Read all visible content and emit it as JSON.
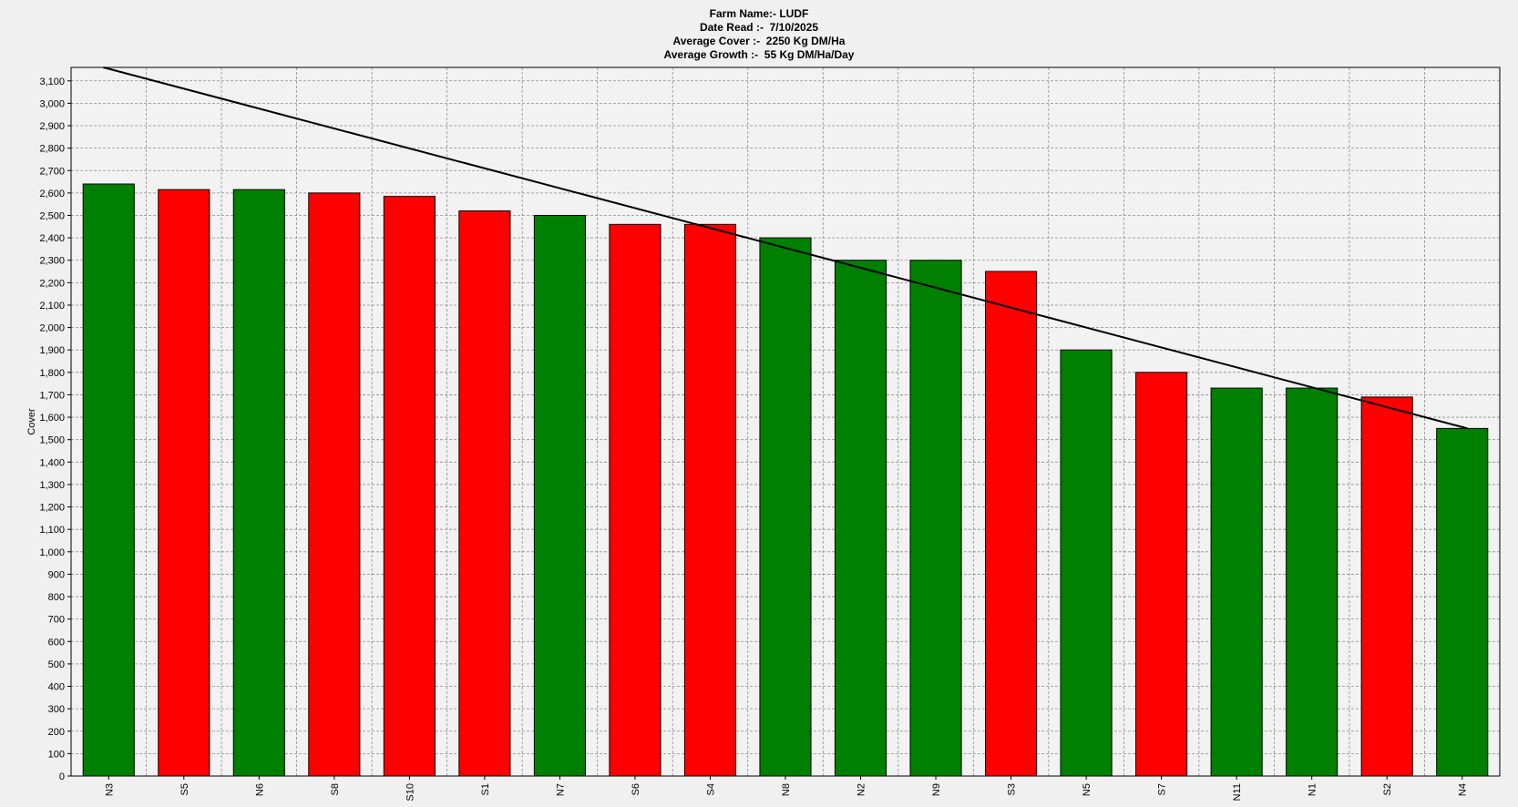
{
  "header": {
    "farm": "Farm Name:- LUDF",
    "date": "Date Read :-  7/10/2025",
    "avg_cover": "Average Cover :-  2250 Kg DM/Ha",
    "avg_growth": "Average Growth :-  55 Kg DM/Ha/Day"
  },
  "colors": {
    "green": "#008000",
    "red": "#ff0000",
    "background": "#f0f0f0",
    "plot_background": "#f2f2f2",
    "grid": "#8c8c8c",
    "line": "#000000"
  },
  "chart_data": {
    "type": "bar",
    "ylabel": "Cover",
    "xlabel": "",
    "ylim": [
      0,
      3160
    ],
    "ytick_step": 100,
    "grid": true,
    "categories": [
      "N3",
      "S5",
      "N6",
      "S8",
      "S10",
      "S1",
      "N7",
      "S6",
      "S4",
      "N8",
      "N2",
      "N9",
      "S3",
      "N5",
      "S7",
      "N11",
      "N1",
      "S2",
      "N4"
    ],
    "values": [
      2640,
      2615,
      2615,
      2600,
      2585,
      2520,
      2500,
      2460,
      2460,
      2400,
      2300,
      2300,
      2250,
      1900,
      1800,
      1730,
      1730,
      1690,
      1550
    ],
    "bar_colors": [
      "green",
      "red",
      "green",
      "red",
      "red",
      "red",
      "green",
      "red",
      "red",
      "green",
      "green",
      "green",
      "red",
      "green",
      "red",
      "green",
      "green",
      "red",
      "green"
    ],
    "target_line": {
      "start": [
        -0.07,
        3160
      ],
      "end": [
        18.07,
        1550
      ]
    }
  }
}
